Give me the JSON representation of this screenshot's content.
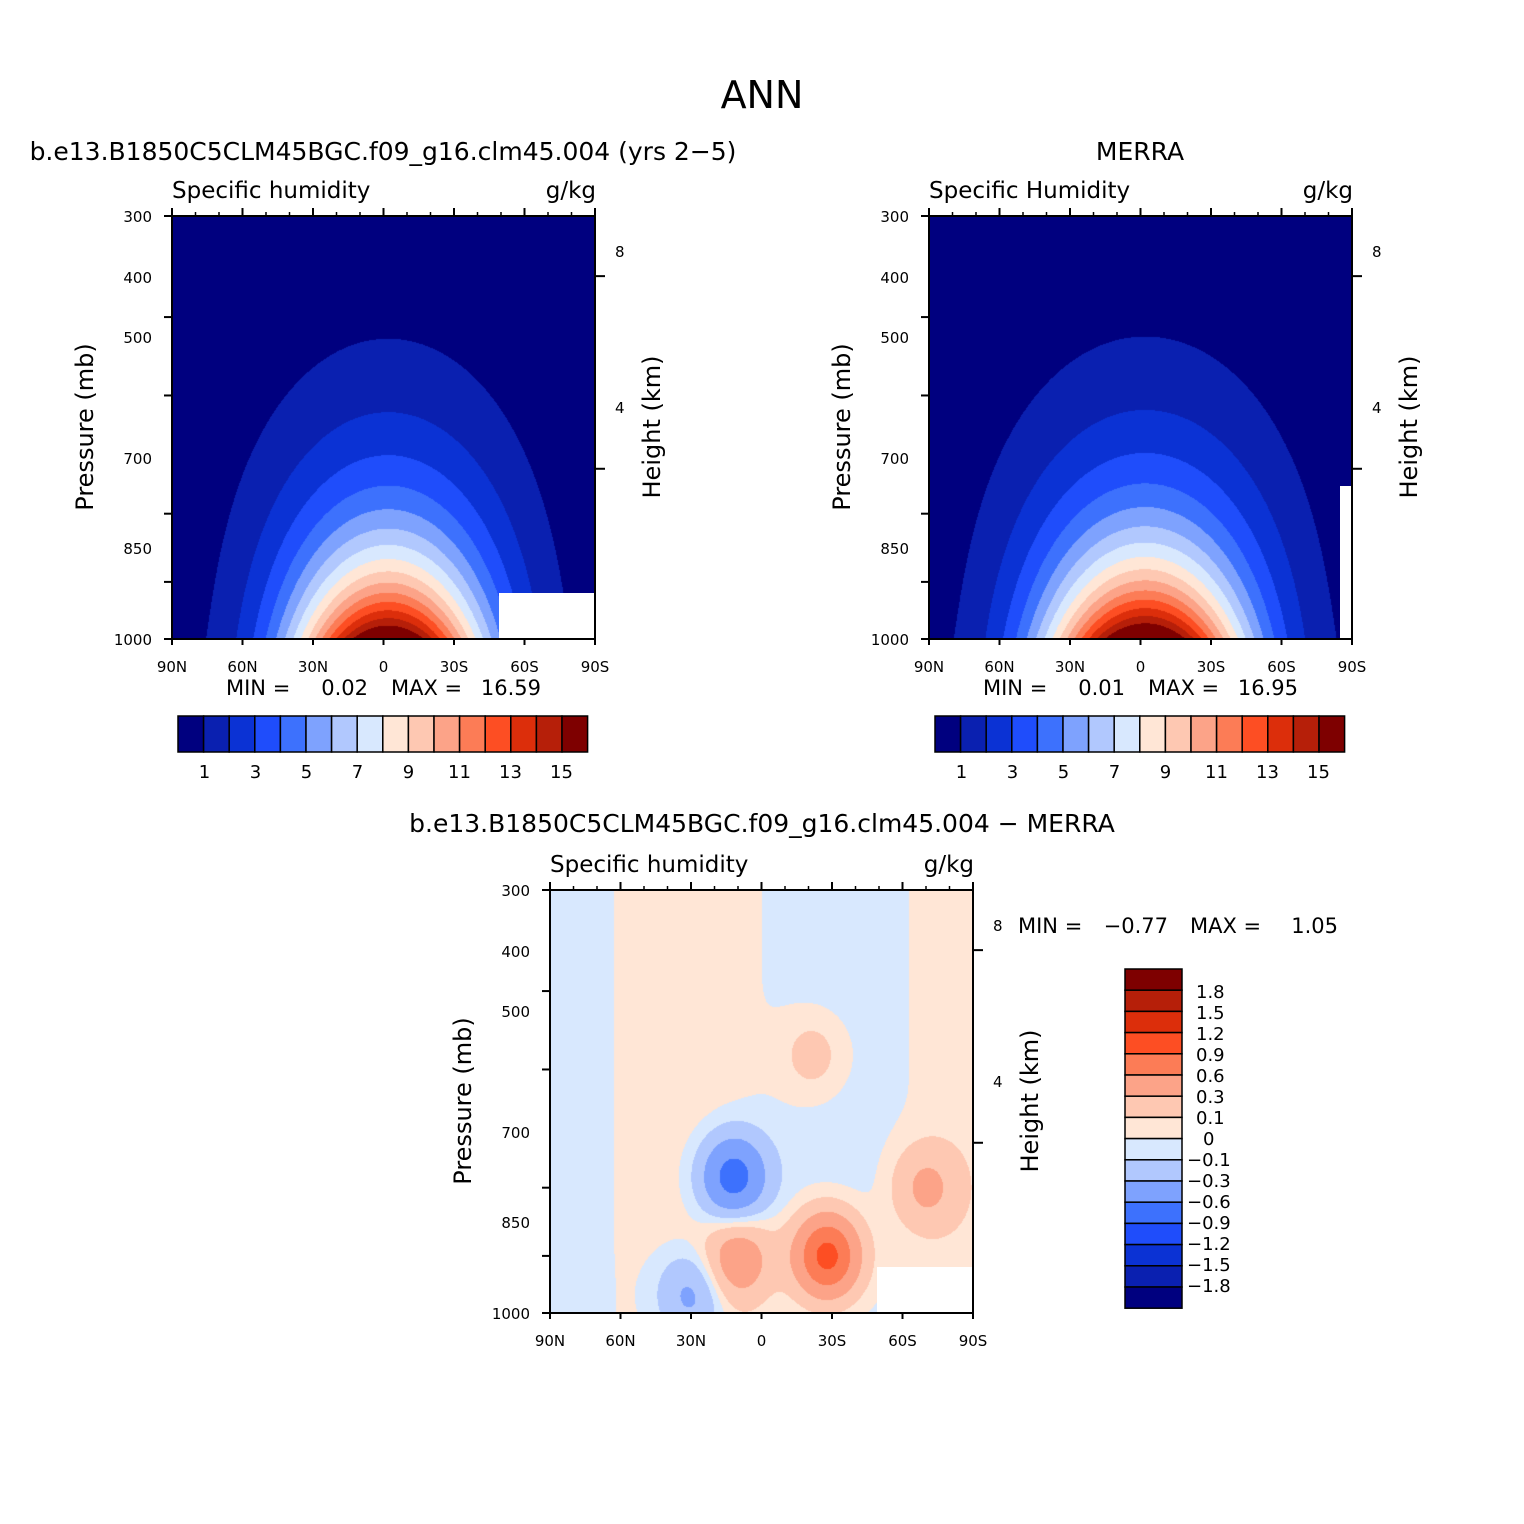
{
  "title": "ANN",
  "legend_labels": {
    "main": [
      "1",
      "3",
      "5",
      "7",
      "9",
      "11",
      "13",
      "15"
    ],
    "diff": [
      "1.8",
      "1.5",
      "1.2",
      "0.9",
      "0.6",
      "0.3",
      "0.1",
      "0",
      "−0.1",
      "−0.3",
      "−0.6",
      "−0.9",
      "−1.2",
      "−1.5",
      "−1.8"
    ]
  },
  "colors": {
    "main_scale": [
      "#00007f",
      "#0a20b0",
      "#0b32d4",
      "#1f4dfb",
      "#3d71fd",
      "#7ea2fe",
      "#b1c8fe",
      "#d8e8fe",
      "#ffe6d6",
      "#fec8b2",
      "#fca388",
      "#fc7c56",
      "#fd4e23",
      "#dc2e0b",
      "#b61f09",
      "#7e0000"
    ],
    "diff_scale": [
      "#00007f",
      "#0a20b0",
      "#0b32d4",
      "#1f4dfb",
      "#3d71fd",
      "#7ea2fe",
      "#b1c8fe",
      "#d8e8fe",
      "#ffe6d6",
      "#fec8b2",
      "#fca388",
      "#fc7c56",
      "#fd4e23",
      "#dc2e0b",
      "#b61f09",
      "#7e0000"
    ]
  },
  "chart_data": [
    {
      "type": "heatmap",
      "case_title": "b.e13.B1850C5CLM45BGC.f09_g16.clm45.004 (yrs 2−5)",
      "variable": "Specific humidity",
      "units": "g/kg",
      "xlabel": "",
      "ylabel": "Pressure (mb)",
      "y2label": "Height (km)",
      "x_ticks": [
        "90N",
        "60N",
        "30N",
        "0",
        "30S",
        "60S",
        "90S"
      ],
      "x_range": [
        90,
        -90
      ],
      "y_ticks": [
        300,
        400,
        500,
        700,
        850,
        1000
      ],
      "y_range": [
        300,
        1000
      ],
      "y_scale": "log",
      "y2_ticks": [
        "8",
        "4"
      ],
      "min_label": "MIN =",
      "min_value": "0.02",
      "max_label": "MAX =",
      "max_value": "16.59",
      "contour_levels": [
        1,
        2,
        3,
        4,
        5,
        6,
        7,
        8,
        9,
        10,
        11,
        12,
        13,
        14,
        15
      ],
      "surface_max": 16.59,
      "peak_latitude": -2,
      "surface_halfwidth_deg": 42,
      "missing_data_region": "south of 60S below about 925 mb"
    },
    {
      "type": "heatmap",
      "case_title": "MERRA",
      "variable": "Specific Humidity",
      "units": "g/kg",
      "xlabel": "",
      "ylabel": "Pressure (mb)",
      "y2label": "Height (km)",
      "x_ticks": [
        "90N",
        "60N",
        "30N",
        "0",
        "30S",
        "60S",
        "90S"
      ],
      "x_range": [
        90,
        -90
      ],
      "y_ticks": [
        300,
        400,
        500,
        700,
        850,
        1000
      ],
      "y_range": [
        300,
        1000
      ],
      "y_scale": "log",
      "y2_ticks": [
        "8",
        "4"
      ],
      "min_label": "MIN =",
      "min_value": "0.01",
      "max_label": "MAX =",
      "max_value": "16.95",
      "contour_levels": [
        1,
        2,
        3,
        4,
        5,
        6,
        7,
        8,
        9,
        10,
        11,
        12,
        13,
        14,
        15
      ],
      "surface_max": 16.95,
      "peak_latitude": -2,
      "surface_halfwidth_deg": 44,
      "missing_data_region": "south of 85S near surface"
    },
    {
      "type": "heatmap",
      "case_title": "b.e13.B1850C5CLM45BGC.f09_g16.clm45.004 − MERRA",
      "variable": "Specific humidity",
      "units": "g/kg",
      "xlabel": "",
      "ylabel": "Pressure (mb)",
      "y2label": "Height (km)",
      "x_ticks": [
        "90N",
        "60N",
        "30N",
        "0",
        "30S",
        "60S",
        "90S"
      ],
      "x_range": [
        90,
        -90
      ],
      "y_ticks": [
        300,
        400,
        500,
        700,
        850,
        1000
      ],
      "y_range": [
        300,
        1000
      ],
      "y_scale": "log",
      "y2_ticks": [
        "8",
        "4"
      ],
      "min_label": "MIN =",
      "min_value": "−0.77",
      "max_label": "MAX =",
      "max_value": "1.05",
      "contour_levels": [
        -1.8,
        -1.5,
        -1.2,
        -0.9,
        -0.6,
        -0.3,
        -0.1,
        0,
        0.1,
        0.3,
        0.6,
        0.9,
        1.2,
        1.5,
        1.8
      ],
      "features": [
        {
          "lat": 12,
          "p": 680,
          "value": -0.77
        },
        {
          "lat": -28,
          "p": 850,
          "value": 1.05
        },
        {
          "lat": 10,
          "p": 860,
          "value": 0.5
        },
        {
          "lat": -70,
          "p": 700,
          "value": 0.35
        },
        {
          "lat": 30,
          "p": 950,
          "value": -0.4
        },
        {
          "lat": -22,
          "p": 480,
          "value": 0.2
        }
      ],
      "missing_data_region": "south of 60S below about 925 mb"
    }
  ]
}
